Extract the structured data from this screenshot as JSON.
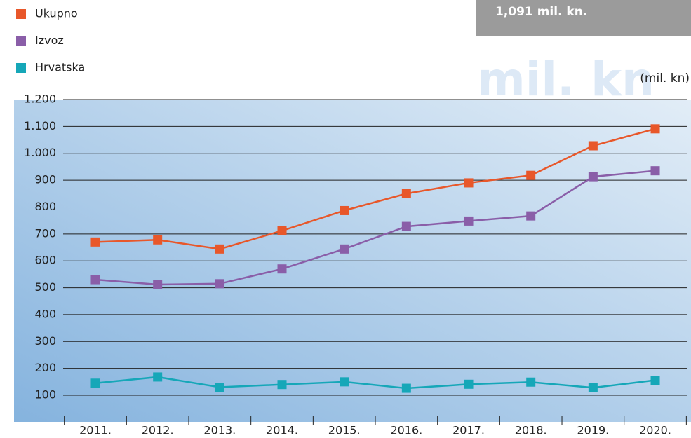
{
  "chart_data": {
    "type": "line",
    "highlight": "1,091 mil. kn.",
    "watermark": "mil. kn",
    "unit_label": "(mil. kn)",
    "categories": [
      "2011.",
      "2012.",
      "2013.",
      "2014.",
      "2015.",
      "2016.",
      "2017.",
      "2018.",
      "2019.",
      "2020."
    ],
    "series": [
      {
        "name": "Ukupno",
        "color": "#e8572a",
        "values": [
          670,
          678,
          644,
          712,
          787,
          850,
          890,
          918,
          1028,
          1091
        ]
      },
      {
        "name": "Izvoz",
        "color": "#8a5ea8",
        "values": [
          530,
          512,
          515,
          570,
          644,
          728,
          748,
          767,
          913,
          935
        ]
      },
      {
        "name": "Hrvatska",
        "color": "#16a7b8",
        "values": [
          145,
          168,
          130,
          140,
          150,
          126,
          141,
          149,
          128,
          156
        ]
      }
    ],
    "ylim": [
      0,
      1200
    ],
    "yticks": [
      100,
      200,
      300,
      400,
      500,
      600,
      700,
      800,
      900,
      {
        "value": 1000,
        "label": "1.000"
      },
      {
        "value": 1100,
        "label": "1.100"
      },
      {
        "value": 1200,
        "label": "1.200"
      }
    ],
    "grid": true
  }
}
